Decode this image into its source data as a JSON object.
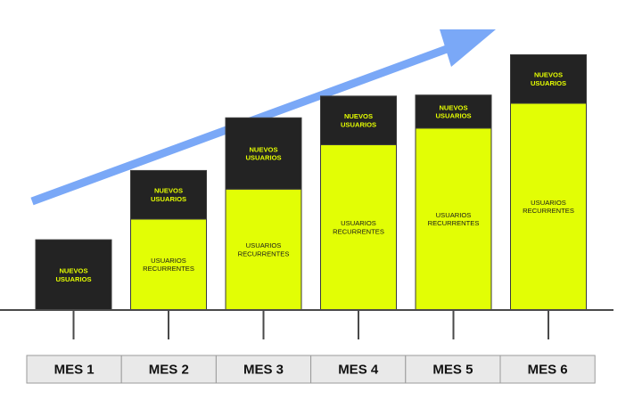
{
  "colors": {
    "new_users": "#232323",
    "returning_users": "#e2fe05",
    "arrow": "#7aa8f7",
    "axis": "#4a4a4a",
    "label_box": "#e9e9e9",
    "label_border": "#9a9a9a"
  },
  "chart_data": {
    "type": "bar",
    "stacked": true,
    "categories": [
      "MES 1",
      "MES 2",
      "MES 3",
      "MES 4",
      "MES 5",
      "MES 6"
    ],
    "series": [
      {
        "name": "USUARIOS RECURRENTES",
        "label_lines": [
          "USUARIOS",
          "RECURRENTES"
        ],
        "values": [
          0,
          88,
          117,
          160,
          176,
          200
        ]
      },
      {
        "name": "NUEVOS USUARIOS",
        "label_lines": [
          "NUEVOS",
          "USUARIOS"
        ],
        "values": [
          68,
          47,
          69,
          47,
          32,
          47
        ]
      }
    ],
    "trend_arrow": "increasing",
    "ylim": [
      0,
      250
    ],
    "grid": false,
    "title": "",
    "xlabel": "",
    "ylabel": ""
  }
}
